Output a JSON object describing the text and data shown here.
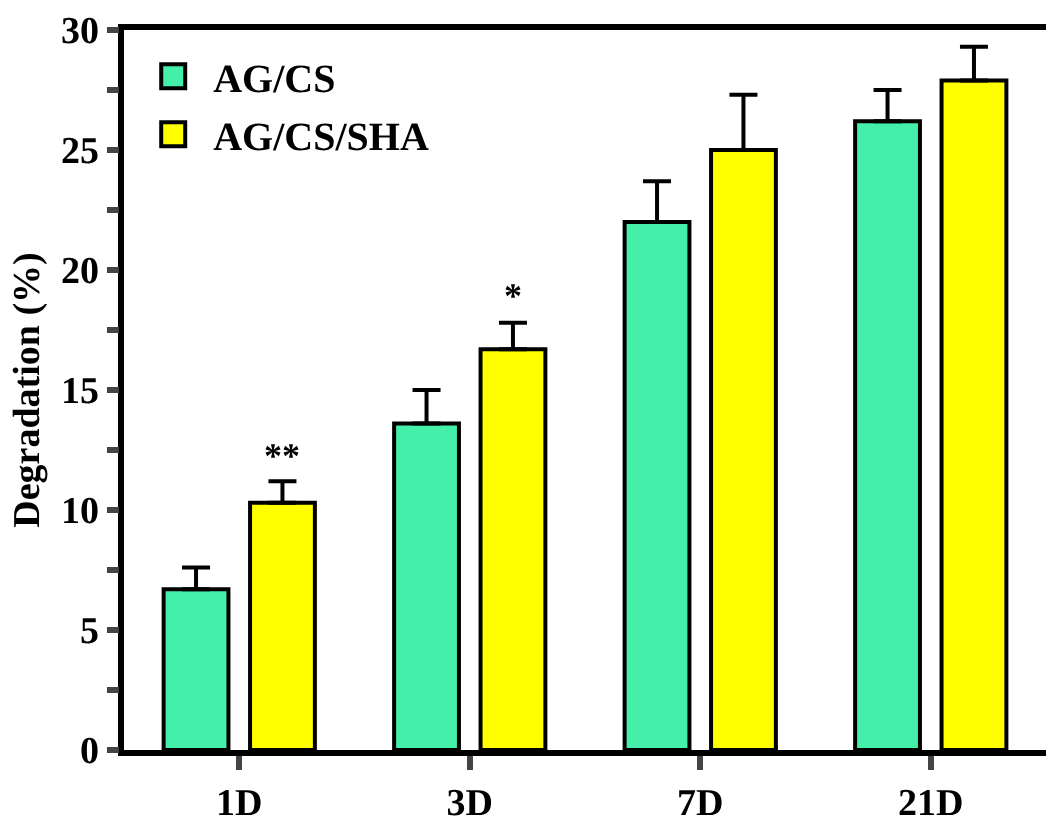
{
  "chart_data": {
    "type": "bar",
    "ylabel": "Degradation (%)",
    "categories": [
      "1D",
      "3D",
      "7D",
      "21D"
    ],
    "series": [
      {
        "name": "AG/CS",
        "color": "#44efaa",
        "values": [
          6.7,
          13.6,
          22.0,
          26.2
        ],
        "errors": [
          0.9,
          1.4,
          1.7,
          1.3
        ]
      },
      {
        "name": "AG/CS/SHA",
        "color": "#ffff00",
        "values": [
          10.3,
          16.7,
          25.0,
          27.9
        ],
        "errors": [
          0.9,
          1.1,
          2.3,
          1.4
        ]
      }
    ],
    "annotations": [
      "**",
      "*"
    ],
    "ylim": [
      0,
      30
    ],
    "yticks": [
      0,
      {
        "value": 2.5,
        "label": null
      },
      5,
      {
        "value": 7.5,
        "label": null
      },
      10,
      {
        "value": 12.5,
        "label": null
      },
      15,
      {
        "value": 17.5,
        "label": null
      },
      20,
      {
        "value": 22.5,
        "label": null
      },
      25,
      {
        "value": 27.5,
        "label": null
      },
      30
    ],
    "legend": "top left"
  }
}
